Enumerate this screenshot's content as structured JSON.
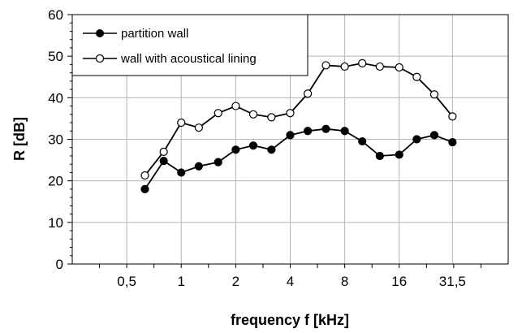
{
  "chart_data": {
    "type": "line",
    "xlabel": "frequency f [kHz]",
    "ylabel": "R [dB]",
    "ylim": [
      0,
      60
    ],
    "y_ticks": [
      "0",
      "10",
      "20",
      "30",
      "40",
      "50",
      "60"
    ],
    "x_scale": "log",
    "x_ticks": [
      {
        "value": 0.5,
        "label": "0,5"
      },
      {
        "value": 1,
        "label": "1"
      },
      {
        "value": 2,
        "label": "2"
      },
      {
        "value": 4,
        "label": "4"
      },
      {
        "value": 8,
        "label": "8"
      },
      {
        "value": 16,
        "label": "16"
      },
      {
        "value": 31.5,
        "label": "31,5"
      }
    ],
    "grid": true,
    "legend": "top-left",
    "x": [
      0.63,
      0.8,
      1,
      1.25,
      1.6,
      2,
      2.5,
      3.15,
      4,
      5,
      6.3,
      8,
      10,
      12.5,
      16,
      20,
      25,
      31.5
    ],
    "series": [
      {
        "name": "partition wall",
        "marker": "filled",
        "color": "#000000",
        "values": [
          18,
          24.8,
          22,
          23.5,
          24.5,
          27.5,
          28.5,
          27.5,
          31,
          32,
          32.5,
          32,
          29.5,
          26,
          26.3,
          30,
          31,
          29.3
        ]
      },
      {
        "name": "wall with acoustical lining",
        "marker": "open",
        "color": "#000000",
        "values": [
          21.3,
          27,
          34,
          32.8,
          36.3,
          38,
          36,
          35.3,
          36.3,
          41,
          47.8,
          47.5,
          48.3,
          47.5,
          47.3,
          45,
          40.8,
          35.5
        ]
      }
    ]
  }
}
